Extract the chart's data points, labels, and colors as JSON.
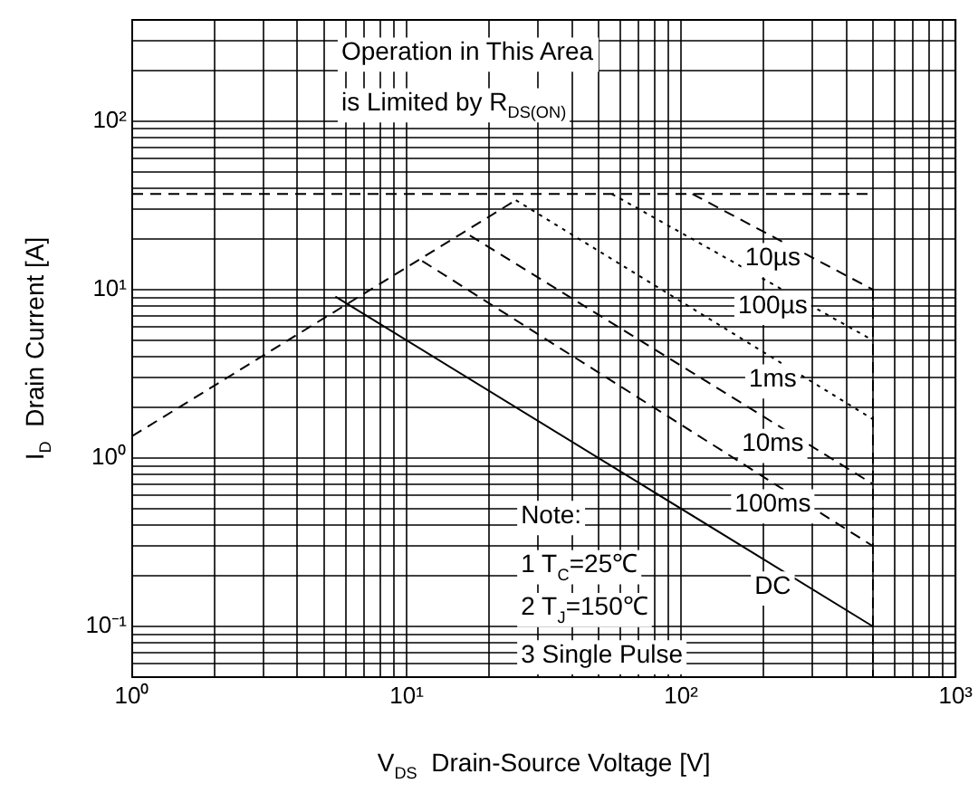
{
  "chart_data": {
    "type": "line",
    "xlabel": "V$_{DS}$  Drain-Source Voltage [V]",
    "ylabel": "I$_{D}$  Drain Current [A]",
    "log": "xy",
    "xlim": [
      1,
      1000
    ],
    "ylim": [
      0.05,
      400
    ],
    "xticks": [
      {
        "value": 1,
        "label": "10⁰"
      },
      {
        "value": 10,
        "label": "10¹"
      },
      {
        "value": 100,
        "label": "10²"
      },
      {
        "value": 1000,
        "label": "10³"
      }
    ],
    "yticks": [
      {
        "value": 0.1,
        "label": "10⁻¹"
      },
      {
        "value": 1,
        "label": "10⁰"
      },
      {
        "value": 10,
        "label": "10¹"
      },
      {
        "value": 100,
        "label": "10²"
      }
    ],
    "grid": true,
    "legend": false,
    "marker": "none",
    "annotations": [
      "Operation in This Area",
      "is Limited by R$_{DS(ON)}$",
      "Note:",
      "1 T$_{C}$=25℃",
      "2 T$_{J}$=150℃",
      "3 Single Pulse"
    ],
    "series": [
      {
        "color": "#000000",
        "line_style": "dashed",
        "x": [
          1,
          25
        ],
        "values": [
          1.35,
          34
        ]
      },
      {
        "color": "#000000",
        "line_style": "dashed",
        "x": [
          1,
          480
        ],
        "values": [
          37,
          37
        ]
      },
      {
        "name": "10µs",
        "color": "#000000",
        "line_style": "dashed",
        "x": [
          110,
          500
        ],
        "values": [
          37,
          10
        ]
      },
      {
        "name": "100µs",
        "color": "#000000",
        "line_style": "dotted",
        "x": [
          56,
          500
        ],
        "values": [
          37,
          5
        ]
      },
      {
        "name": "1ms",
        "color": "#000000",
        "line_style": "dotted",
        "x": [
          25,
          500
        ],
        "values": [
          34,
          1.7
        ]
      },
      {
        "name": "10ms",
        "color": "#000000",
        "line_style": "dashed",
        "x": [
          17,
          500
        ],
        "values": [
          21,
          0.7
        ]
      },
      {
        "name": "100ms",
        "color": "#000000",
        "line_style": "dashed",
        "x": [
          11.4,
          500
        ],
        "values": [
          14.8,
          0.3
        ]
      },
      {
        "name": "DC",
        "color": "#000000",
        "line_style": "solid",
        "x": [
          5.5,
          500
        ],
        "values": [
          9.1,
          0.1
        ]
      },
      {
        "color": "#000000",
        "line_style": "dashed",
        "x": [
          500,
          500
        ],
        "values": [
          10,
          0.05
        ]
      }
    ]
  }
}
